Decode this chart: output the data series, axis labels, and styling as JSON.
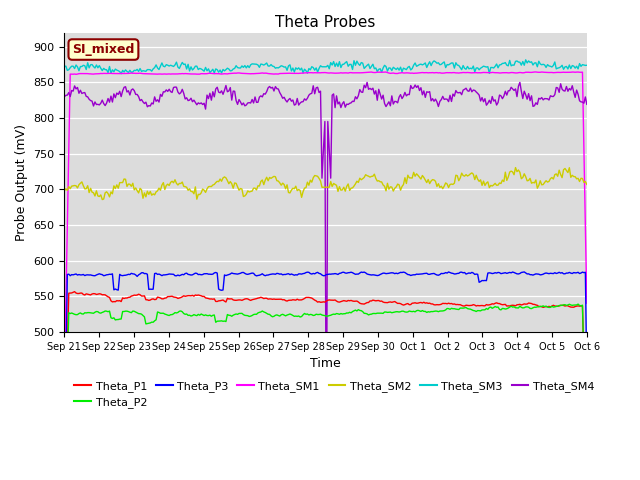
{
  "title": "Theta Probes",
  "xlabel": "Time",
  "ylabel": "Probe Output (mV)",
  "ylim": [
    500,
    920
  ],
  "yticks": [
    500,
    550,
    600,
    650,
    700,
    750,
    800,
    850,
    900
  ],
  "background_color": "#dcdcdc",
  "annotation_text": "SI_mixed",
  "annotation_bg": "#ffffcc",
  "annotation_border": "#8b0000",
  "xtick_labels": [
    "Sep 21",
    "Sep 22",
    "Sep 23",
    "Sep 24",
    "Sep 25",
    "Sep 26",
    "Sep 27",
    "Sep 28",
    "Sep 29",
    "Sep 30",
    "Oct 1",
    "Oct 2",
    "Oct 3",
    "Oct 4",
    "Oct 5",
    "Oct 6"
  ],
  "colors": {
    "Theta_P1": "#ff0000",
    "Theta_P2": "#00ee00",
    "Theta_P3": "#0000ff",
    "Theta_SM1": "#ff00ff",
    "Theta_SM2": "#cccc00",
    "Theta_SM3": "#00cccc",
    "Theta_SM4": "#9900cc"
  },
  "n_days": 15,
  "n_pts": 360,
  "spike_day": 7.5
}
